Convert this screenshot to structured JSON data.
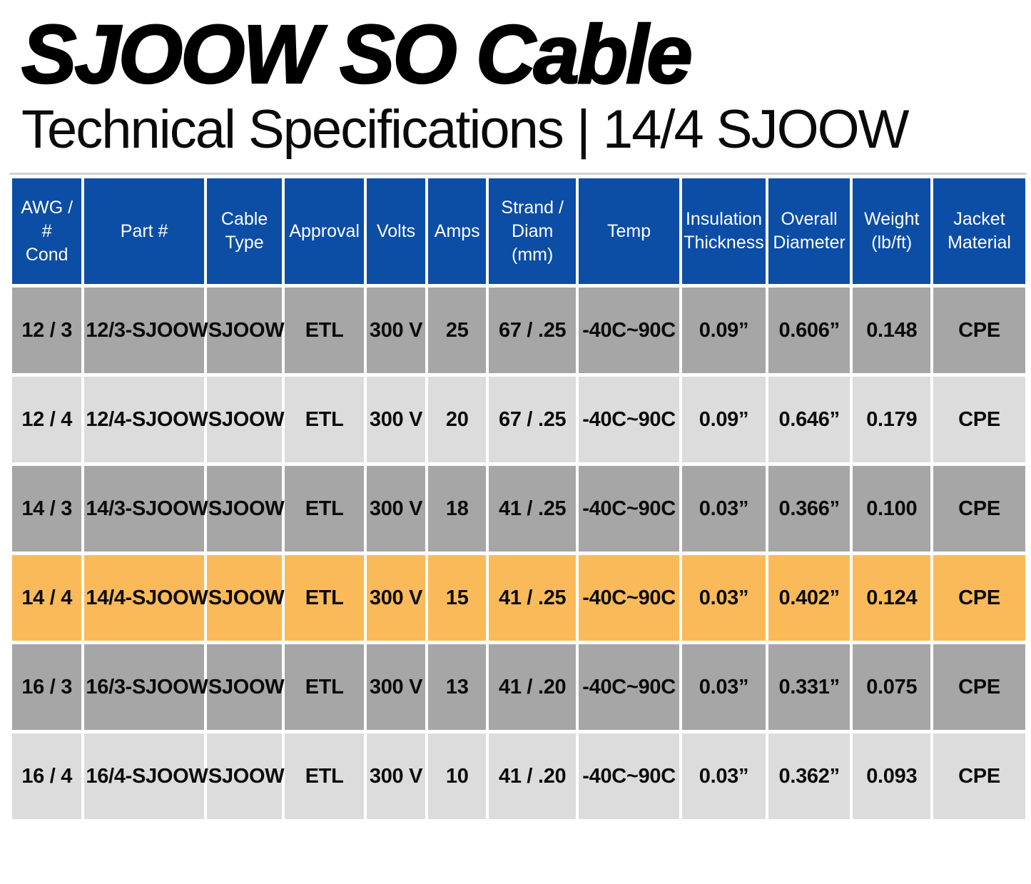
{
  "header": {
    "title": "SJOOW SO Cable",
    "subtitle": "Technical Specifications | 14/4 SJOOW"
  },
  "table": {
    "columns": [
      {
        "key": "awg",
        "label": "AWG / #\nCond"
      },
      {
        "key": "part",
        "label": "Part #"
      },
      {
        "key": "cable-type",
        "label": "Cable\nType"
      },
      {
        "key": "approval",
        "label": "Approval"
      },
      {
        "key": "volts",
        "label": "Volts"
      },
      {
        "key": "amps",
        "label": "Amps"
      },
      {
        "key": "strand",
        "label": "Strand /\nDiam\n(mm)"
      },
      {
        "key": "temp",
        "label": "Temp"
      },
      {
        "key": "insulation",
        "label": "Insulation\nThickness"
      },
      {
        "key": "diameter",
        "label": "Overall\nDiameter"
      },
      {
        "key": "weight",
        "label": "Weight\n(lb/ft)"
      },
      {
        "key": "jacket",
        "label": "Jacket\nMaterial"
      }
    ],
    "rows": [
      {
        "shade": "gray-dark",
        "cells": [
          "12 / 3",
          "12/3-SJOOW",
          "SJOOW",
          "ETL",
          "300 V",
          "25",
          "67 / .25",
          "-40C~90C",
          "0.09”",
          "0.606”",
          "0.148",
          "CPE"
        ]
      },
      {
        "shade": "gray-light",
        "cells": [
          "12 / 4",
          "12/4-SJOOW",
          "SJOOW",
          "ETL",
          "300 V",
          "20",
          "67 / .25",
          "-40C~90C",
          "0.09”",
          "0.646”",
          "0.179",
          "CPE"
        ]
      },
      {
        "shade": "gray-dark",
        "cells": [
          "14 / 3",
          "14/3-SJOOW",
          "SJOOW",
          "ETL",
          "300 V",
          "18",
          "41 / .25",
          "-40C~90C",
          "0.03”",
          "0.366”",
          "0.100",
          "CPE"
        ]
      },
      {
        "shade": "highlight",
        "cells": [
          "14 / 4",
          "14/4-SJOOW",
          "SJOOW",
          "ETL",
          "300 V",
          "15",
          "41 / .25",
          "-40C~90C",
          "0.03”",
          "0.402”",
          "0.124",
          "CPE"
        ]
      },
      {
        "shade": "gray-dark",
        "cells": [
          "16 / 3",
          "16/3-SJOOW",
          "SJOOW",
          "ETL",
          "300 V",
          "13",
          "41 / .20",
          "-40C~90C",
          "0.03”",
          "0.331”",
          "0.075",
          "CPE"
        ]
      },
      {
        "shade": "gray-light",
        "cells": [
          "16 / 4",
          "16/4-SJOOW",
          "SJOOW",
          "ETL",
          "300 V",
          "10",
          "41 / .20",
          "-40C~90C",
          "0.03”",
          "0.362”",
          "0.093",
          "CPE"
        ]
      }
    ],
    "highlighted_row_part": "14/4-SJOOW"
  },
  "colors": {
    "header_bg": "#0c4da6",
    "header_text": "#ffffff",
    "row_gray_dark": "#a6a6a6",
    "row_gray_light": "#dcdcdc",
    "row_highlight": "#fbba59",
    "cell_text": "#0b0b0b",
    "table_top_border": "#d2d2d2"
  }
}
